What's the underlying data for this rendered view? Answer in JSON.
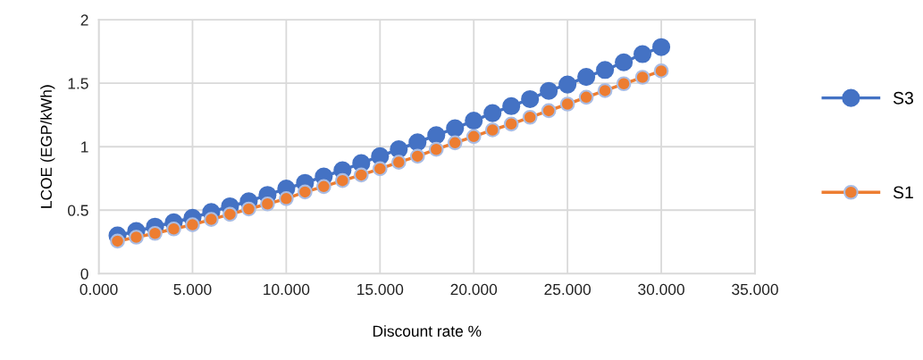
{
  "chart_data": {
    "type": "line",
    "xlabel": "Discount rate %",
    "ylabel": "LCOE (EGP/kWh)",
    "x": [
      1,
      2,
      3,
      4,
      5,
      6,
      7,
      8,
      9,
      10,
      11,
      12,
      13,
      14,
      15,
      16,
      17,
      18,
      19,
      20,
      21,
      22,
      23,
      24,
      25,
      26,
      27,
      28,
      29,
      30
    ],
    "series": [
      {
        "name": "S3",
        "color": "#4472c4",
        "values": [
          0.3,
          0.335,
          0.37,
          0.405,
          0.44,
          0.485,
          0.53,
          0.57,
          0.62,
          0.67,
          0.715,
          0.765,
          0.815,
          0.87,
          0.925,
          0.98,
          1.035,
          1.09,
          1.145,
          1.205,
          1.265,
          1.32,
          1.375,
          1.44,
          1.49,
          1.55,
          1.605,
          1.665,
          1.73,
          1.785
        ]
      },
      {
        "name": "S1",
        "color": "#ed7d31",
        "values": [
          0.256,
          0.287,
          0.317,
          0.352,
          0.385,
          0.427,
          0.467,
          0.509,
          0.549,
          0.591,
          0.643,
          0.686,
          0.733,
          0.777,
          0.826,
          0.878,
          0.925,
          0.979,
          1.031,
          1.08,
          1.132,
          1.179,
          1.232,
          1.284,
          1.336,
          1.39,
          1.442,
          1.496,
          1.547,
          1.597
        ]
      }
    ],
    "xlim": [
      0,
      35
    ],
    "xticks": [
      {
        "value": 0,
        "label": "0.000"
      },
      {
        "value": 5,
        "label": "5.000"
      },
      {
        "value": 10,
        "label": "10.000"
      },
      {
        "value": 15,
        "label": "15.000"
      },
      {
        "value": 20,
        "label": "20.000"
      },
      {
        "value": 25,
        "label": "25.000"
      },
      {
        "value": 30,
        "label": "30.000"
      },
      {
        "value": 35,
        "label": "35.000"
      }
    ],
    "ylim": [
      0,
      2
    ],
    "yticks": [
      0,
      0.5,
      1,
      1.5,
      2
    ],
    "grid": true,
    "legend": "right",
    "marker": "circle",
    "line_style": "solid"
  }
}
